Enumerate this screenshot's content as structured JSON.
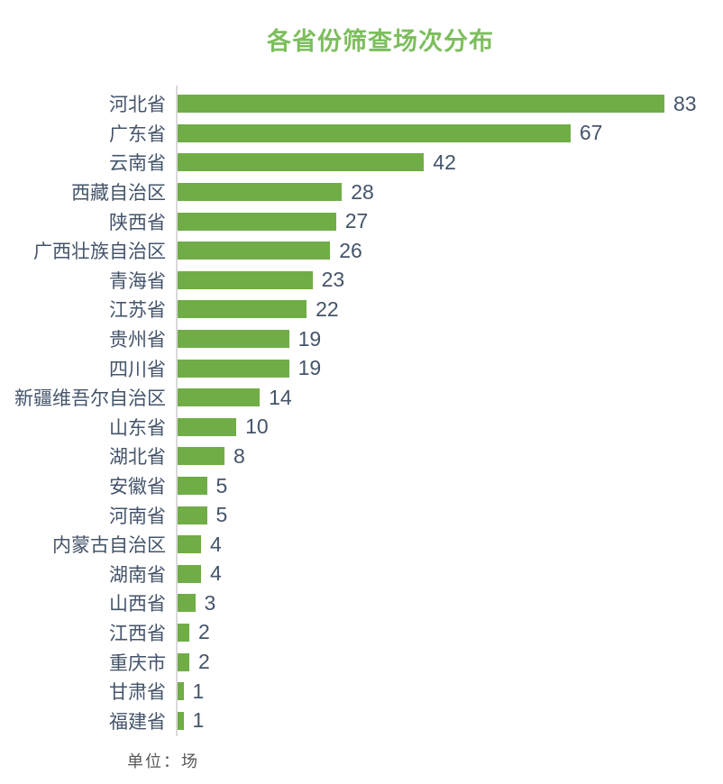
{
  "title": {
    "text": "各省份筛查场次分布",
    "color": "#7cbe5c"
  },
  "unit_note": "单位：场",
  "chart_data": {
    "type": "bar",
    "orientation": "horizontal",
    "title": "各省份筛查场次分布",
    "categories": [
      "河北省",
      "广东省",
      "云南省",
      "西藏自治区",
      "陕西省",
      "广西壮族自治区",
      "青海省",
      "江苏省",
      "贵州省",
      "四川省",
      "新疆维吾尔自治区",
      "山东省",
      "湖北省",
      "安徽省",
      "河南省",
      "内蒙古自治区",
      "湖南省",
      "山西省",
      "江西省",
      "重庆市",
      "甘肃省",
      "福建省"
    ],
    "values": [
      83,
      67,
      42,
      28,
      27,
      26,
      23,
      22,
      19,
      19,
      14,
      10,
      8,
      5,
      5,
      4,
      4,
      3,
      2,
      2,
      1,
      1
    ],
    "xlabel": "",
    "ylabel": "",
    "xlim": [
      0,
      83
    ],
    "unit": "场",
    "data_labels": true,
    "grid": false,
    "legend": false,
    "bar_color": "#70ad47",
    "category_label_color": "#44546a",
    "value_label_color": "#44546a",
    "axis_line_color": "#d9d9d9",
    "unit_note_color": "#595959",
    "background_color": "#ffffff"
  }
}
